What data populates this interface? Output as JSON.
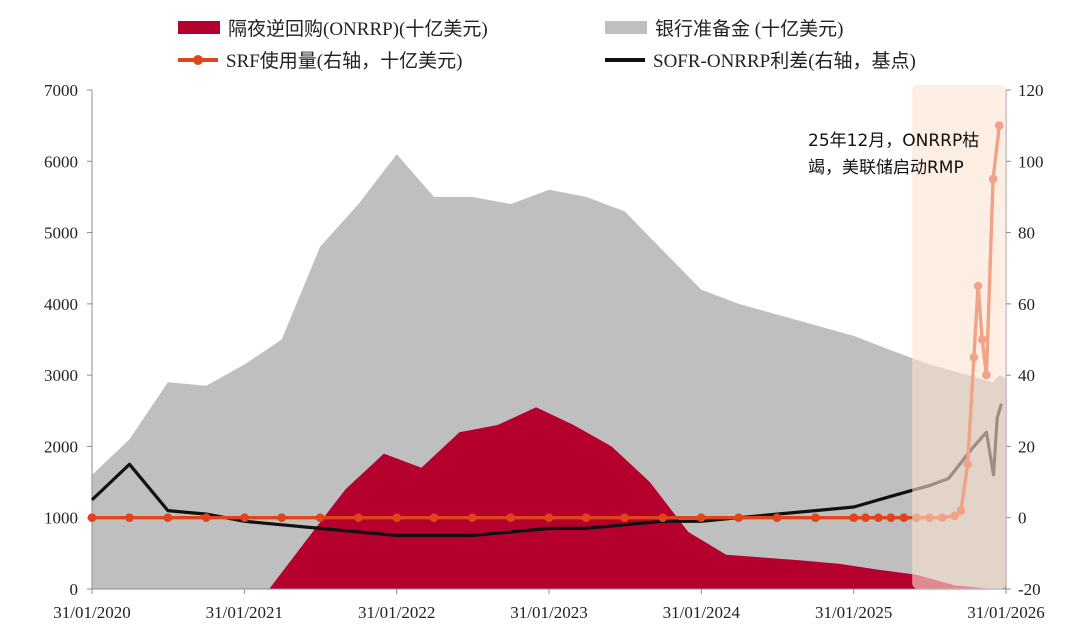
{
  "legend": {
    "onrrp": "隔夜逆回购(ONRRP)(十亿美元)",
    "reserves": "银行准备金 (十亿美元)",
    "srf": "SRF使用量(右轴，十亿美元)",
    "spread": "SOFR-ONRRP利差(右轴，基点)"
  },
  "annotation": {
    "line1": "25年12月，ONRRP枯",
    "line2": "竭，美联储启动RMP"
  },
  "colors": {
    "onrrp": "#b5002e",
    "reserves": "#bfbfbf",
    "srf": "#e0441a",
    "spread": "#111111",
    "highlight": "#fbe3d2"
  },
  "chart_data": {
    "type": "area",
    "x_tick_labels": [
      "31/01/2020",
      "31/01/2021",
      "31/01/2022",
      "31/01/2023",
      "31/01/2024",
      "31/01/2025",
      "31/01/2026"
    ],
    "left_axis": {
      "ticks": [
        "0",
        "1000",
        "2000",
        "3000",
        "4000",
        "5000",
        "6000",
        "7000"
      ],
      "range": [
        0,
        7000
      ]
    },
    "right_axis": {
      "ticks": [
        "-20",
        "0",
        "20",
        "40",
        "60",
        "80",
        "100",
        "120"
      ],
      "range": [
        -20,
        120
      ]
    },
    "x_range": [
      "2020-01-31",
      "2026-01-31"
    ],
    "highlight_range": [
      "2025-06-20",
      "2026-01-31"
    ],
    "series": [
      {
        "name": "隔夜逆回购(ONRRP)(十亿美元)",
        "kind": "area",
        "axis": "left",
        "points": [
          [
            "2020-01-31",
            0
          ],
          [
            "2021-01-31",
            0
          ],
          [
            "2021-03-31",
            0
          ],
          [
            "2021-06-30",
            700
          ],
          [
            "2021-09-30",
            1400
          ],
          [
            "2021-12-31",
            1900
          ],
          [
            "2022-03-31",
            1700
          ],
          [
            "2022-06-30",
            2200
          ],
          [
            "2022-09-30",
            2300
          ],
          [
            "2022-12-31",
            2550
          ],
          [
            "2023-03-31",
            2300
          ],
          [
            "2023-06-30",
            2000
          ],
          [
            "2023-09-30",
            1500
          ],
          [
            "2023-12-31",
            800
          ],
          [
            "2024-03-31",
            480
          ],
          [
            "2024-06-30",
            440
          ],
          [
            "2024-09-30",
            400
          ],
          [
            "2024-12-31",
            350
          ],
          [
            "2025-03-31",
            270
          ],
          [
            "2025-06-30",
            200
          ],
          [
            "2025-09-30",
            50
          ],
          [
            "2025-12-31",
            0
          ],
          [
            "2026-01-31",
            0
          ]
        ]
      },
      {
        "name": "银行准备金 (十亿美元)",
        "kind": "area",
        "axis": "left",
        "points": [
          [
            "2020-01-31",
            1600
          ],
          [
            "2020-04-30",
            2100
          ],
          [
            "2020-07-31",
            2900
          ],
          [
            "2020-10-31",
            2850
          ],
          [
            "2021-01-31",
            3150
          ],
          [
            "2021-04-30",
            3500
          ],
          [
            "2021-07-31",
            4800
          ],
          [
            "2021-10-31",
            5400
          ],
          [
            "2022-01-31",
            6100
          ],
          [
            "2022-04-30",
            5500
          ],
          [
            "2022-07-31",
            5500
          ],
          [
            "2022-10-31",
            5400
          ],
          [
            "2023-01-31",
            5600
          ],
          [
            "2023-04-30",
            5500
          ],
          [
            "2023-07-31",
            5300
          ],
          [
            "2023-10-31",
            4750
          ],
          [
            "2024-01-31",
            4200
          ],
          [
            "2024-04-30",
            4000
          ],
          [
            "2024-07-31",
            3850
          ],
          [
            "2024-10-31",
            3700
          ],
          [
            "2025-01-31",
            3550
          ],
          [
            "2025-04-30",
            3350
          ],
          [
            "2025-07-31",
            3150
          ],
          [
            "2025-10-31",
            3000
          ],
          [
            "2025-12-31",
            2900
          ],
          [
            "2026-01-15",
            3000
          ],
          [
            "2026-01-31",
            2950
          ]
        ]
      },
      {
        "name": "SRF使用量(右轴，十亿美元)",
        "kind": "line-markers",
        "axis": "right",
        "points": [
          [
            "2020-01-31",
            0
          ],
          [
            "2020-04-30",
            0
          ],
          [
            "2020-07-31",
            0
          ],
          [
            "2020-10-31",
            0
          ],
          [
            "2021-01-31",
            0
          ],
          [
            "2021-04-30",
            0
          ],
          [
            "2021-07-31",
            0
          ],
          [
            "2021-10-31",
            0
          ],
          [
            "2022-01-31",
            0
          ],
          [
            "2022-04-30",
            0
          ],
          [
            "2022-07-31",
            0
          ],
          [
            "2022-10-31",
            0
          ],
          [
            "2023-01-31",
            0
          ],
          [
            "2023-04-30",
            0
          ],
          [
            "2023-07-31",
            0
          ],
          [
            "2023-10-31",
            0
          ],
          [
            "2024-01-31",
            0
          ],
          [
            "2024-04-30",
            0
          ],
          [
            "2024-07-31",
            0
          ],
          [
            "2024-10-31",
            0
          ],
          [
            "2025-01-31",
            0
          ],
          [
            "2025-02-28",
            0
          ],
          [
            "2025-03-31",
            0
          ],
          [
            "2025-04-30",
            0
          ],
          [
            "2025-05-31",
            0
          ],
          [
            "2025-06-30",
            0
          ],
          [
            "2025-07-31",
            0
          ],
          [
            "2025-08-31",
            0
          ],
          [
            "2025-09-30",
            0.5
          ],
          [
            "2025-10-15",
            2
          ],
          [
            "2025-10-31",
            15
          ],
          [
            "2025-11-15",
            45
          ],
          [
            "2025-11-25",
            65
          ],
          [
            "2025-12-05",
            50
          ],
          [
            "2025-12-15",
            40
          ],
          [
            "2025-12-31",
            95
          ],
          [
            "2026-01-15",
            110
          ]
        ]
      },
      {
        "name": "SOFR-ONRRP利差(右轴，基点)",
        "kind": "line",
        "axis": "right",
        "points": [
          [
            "2020-01-31",
            5
          ],
          [
            "2020-04-30",
            15
          ],
          [
            "2020-07-31",
            2
          ],
          [
            "2020-10-31",
            1
          ],
          [
            "2021-01-31",
            -1
          ],
          [
            "2021-04-30",
            -2
          ],
          [
            "2021-07-31",
            -3
          ],
          [
            "2021-10-31",
            -4
          ],
          [
            "2022-01-31",
            -5
          ],
          [
            "2022-04-30",
            -5
          ],
          [
            "2022-07-31",
            -5
          ],
          [
            "2022-10-31",
            -4
          ],
          [
            "2023-01-31",
            -3
          ],
          [
            "2023-04-30",
            -3
          ],
          [
            "2023-07-31",
            -2
          ],
          [
            "2023-10-31",
            -1
          ],
          [
            "2024-01-31",
            -1
          ],
          [
            "2024-04-30",
            0
          ],
          [
            "2024-07-31",
            1
          ],
          [
            "2024-10-31",
            2
          ],
          [
            "2025-01-31",
            3
          ],
          [
            "2025-04-30",
            6
          ],
          [
            "2025-07-31",
            9
          ],
          [
            "2025-09-15",
            11
          ],
          [
            "2025-11-15",
            20
          ],
          [
            "2025-12-15",
            24
          ],
          [
            "2026-01-01",
            12
          ],
          [
            "2026-01-10",
            28
          ],
          [
            "2026-01-20",
            32
          ]
        ]
      }
    ]
  }
}
